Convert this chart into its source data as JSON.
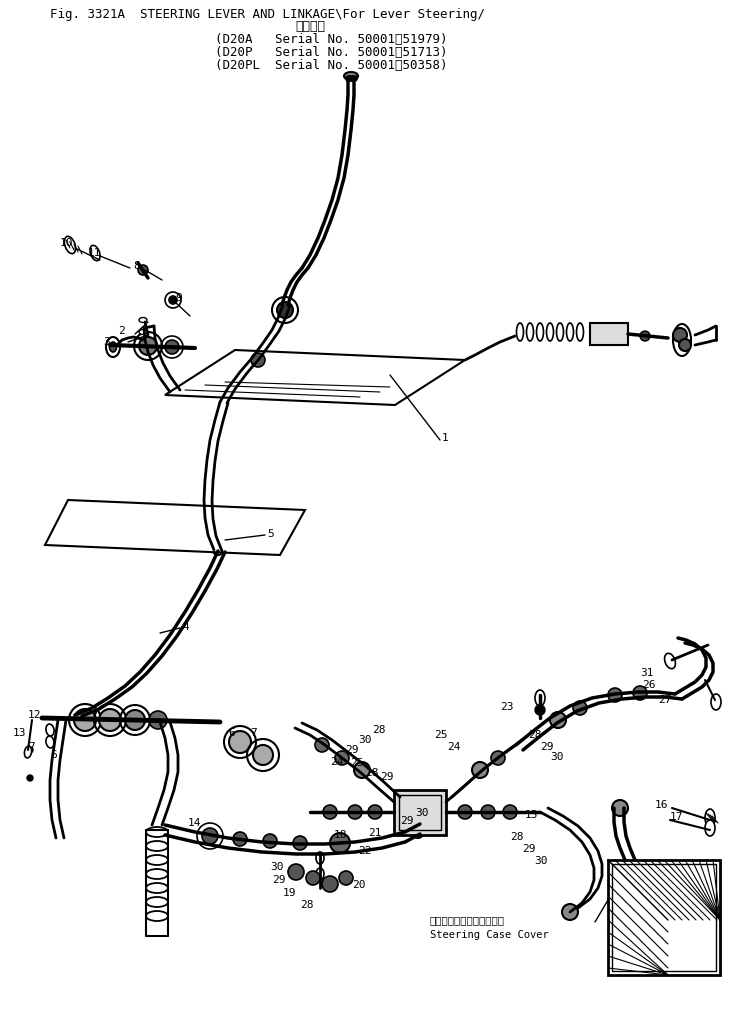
{
  "title_line1": "Fig. 3321A  STEERING LEVER AND LINKAGE\\For Lever Steering/",
  "title_line2": "適用号機",
  "title_line3": "(D20A   Serial No. 50001～51979)",
  "title_line4": "(D20P   Serial No. 50001～51713)",
  "title_line5": "(D20PL  Serial No. 50001～50358)",
  "bg_color": "#ffffff",
  "fig_width": 7.29,
  "fig_height": 10.13,
  "dpi": 100,
  "steering_case_cover_jp": "ステアリングケースカバー",
  "steering_case_cover_en": "Steering Case Cover"
}
